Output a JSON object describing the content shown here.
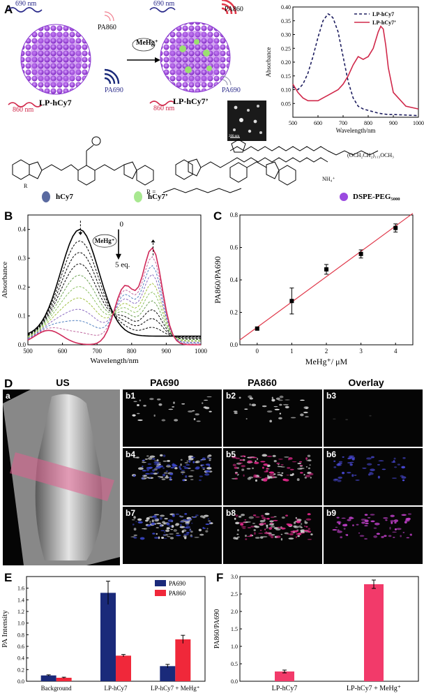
{
  "panels": {
    "A": "A",
    "B": "B",
    "C": "C",
    "D": "D",
    "E": "E",
    "F": "F"
  },
  "schematic": {
    "laser1": "690 nm",
    "laser2": "860 nm",
    "laser3": "690 nm",
    "laser4": "860 nm",
    "pa860_left": "PA860",
    "pa690_left": "PA690",
    "pa860_right": "PA860",
    "pa690_right": "PA690",
    "particle_left": "LP-hCy7",
    "particle_right": "LP-hCy7’",
    "reagent": "MeHg⁺",
    "tem_scale": "200 nm",
    "legend_hcy7": "hCy7",
    "legend_hcy7p": "hCy7’",
    "legend_dspe": "DSPE-PEG₅₀₀₀",
    "r_label": "R =",
    "r_sub": "R",
    "nh4": "NH₄⁺",
    "peg_chain": "(OCH₂CH₂)₁₁₃OCH₃"
  },
  "chart_data": [
    {
      "id": "A-spectrum",
      "type": "line",
      "xlabel": "Wavelength/nm",
      "ylabel": "Absorbance",
      "xlim": [
        500,
        1000
      ],
      "ylim": [
        0,
        0.4
      ],
      "xticks": [
        500,
        600,
        700,
        800,
        900,
        1000
      ],
      "yticks": [
        0.05,
        0.1,
        0.15,
        0.2,
        0.25,
        0.3,
        0.35,
        0.4
      ],
      "legend_position": "top-right",
      "series": [
        {
          "name": "LP-hCy7",
          "color": "#1c1c5e",
          "dash": true,
          "x": [
            500,
            520,
            540,
            560,
            580,
            600,
            620,
            640,
            650,
            660,
            680,
            700,
            720,
            740,
            760,
            780,
            800,
            820,
            840,
            860,
            880,
            900,
            950,
            1000
          ],
          "y": [
            0.11,
            0.1,
            0.12,
            0.16,
            0.22,
            0.29,
            0.35,
            0.375,
            0.37,
            0.36,
            0.31,
            0.22,
            0.13,
            0.07,
            0.04,
            0.03,
            0.025,
            0.02,
            0.015,
            0.012,
            0.01,
            0.01,
            0.008,
            0.006
          ]
        },
        {
          "name": "LP-hCy7’",
          "color": "#d0284a",
          "dash": false,
          "x": [
            500,
            520,
            540,
            560,
            580,
            600,
            620,
            640,
            660,
            680,
            700,
            720,
            740,
            760,
            780,
            790,
            800,
            820,
            840,
            850,
            860,
            870,
            880,
            900,
            950,
            1000
          ],
          "y": [
            0.12,
            0.09,
            0.07,
            0.06,
            0.06,
            0.06,
            0.07,
            0.08,
            0.09,
            0.1,
            0.12,
            0.15,
            0.19,
            0.22,
            0.21,
            0.215,
            0.22,
            0.25,
            0.31,
            0.33,
            0.32,
            0.26,
            0.18,
            0.09,
            0.04,
            0.03
          ]
        }
      ]
    },
    {
      "id": "B-titration",
      "type": "line",
      "xlabel": "Wavelength/nm",
      "ylabel": "Absorbance",
      "xlim": [
        500,
        1000
      ],
      "ylim": [
        0,
        0.45
      ],
      "xticks": [
        500,
        600,
        700,
        800,
        900,
        1000
      ],
      "yticks": [
        0.0,
        0.1,
        0.2,
        0.3,
        0.4
      ],
      "annotation_top": "0",
      "annotation_bottom": "5 eq.",
      "reagent": "MeHg⁺",
      "n_curves": 11
    },
    {
      "id": "C-calibration",
      "type": "scatter",
      "xlabel": "MeHg⁺/ μM",
      "ylabel": "PA860/PA690",
      "xlim": [
        -0.5,
        4.5
      ],
      "ylim": [
        0,
        0.8
      ],
      "xticks": [
        0,
        1,
        2,
        3,
        4
      ],
      "yticks": [
        0.0,
        0.2,
        0.4,
        0.6,
        0.8
      ],
      "x": [
        0,
        1,
        2,
        3,
        4
      ],
      "y": [
        0.1,
        0.27,
        0.465,
        0.56,
        0.72
      ],
      "err": [
        0.01,
        0.08,
        0.03,
        0.025,
        0.025
      ],
      "fit": {
        "x": [
          -0.5,
          4.5
        ],
        "y": [
          0.03,
          0.81
        ],
        "color": "#e0384a"
      }
    },
    {
      "id": "E-intensity",
      "type": "bar",
      "ylabel": "PA Intensity",
      "ylim": [
        0,
        1.8
      ],
      "yticks": [
        0.0,
        0.2,
        0.4,
        0.6,
        0.8,
        1.0,
        1.2,
        1.4,
        1.6
      ],
      "legend_position": "top-right",
      "categories": [
        "Background",
        "LP-hCy7",
        "LP-hCy7 + MeHg⁺"
      ],
      "series": [
        {
          "name": "PA690",
          "color": "#1a2a7a",
          "values": [
            0.1,
            1.52,
            0.26
          ],
          "err": [
            0.01,
            0.2,
            0.03
          ]
        },
        {
          "name": "PA860",
          "color": "#f0283a",
          "values": [
            0.06,
            0.44,
            0.72
          ],
          "err": [
            0.01,
            0.02,
            0.07
          ]
        }
      ]
    },
    {
      "id": "F-ratio",
      "type": "bar",
      "ylabel": "PA860/PA690",
      "ylim": [
        0,
        3.0
      ],
      "yticks": [
        0.0,
        0.5,
        1.0,
        1.5,
        2.0,
        2.5,
        3.0
      ],
      "categories": [
        "LP-hCy7",
        "LP-hCy7 + MeHg⁺"
      ],
      "values": [
        0.28,
        2.78
      ],
      "err": [
        0.04,
        0.12
      ],
      "color": "#f23a6a"
    }
  ],
  "imaging": {
    "headers": [
      "US",
      "PA690",
      "PA860",
      "Overlay"
    ],
    "us_label": "a",
    "cells": [
      "b1",
      "b2",
      "b3",
      "b4",
      "b5",
      "b6",
      "b7",
      "b8",
      "b9"
    ]
  }
}
